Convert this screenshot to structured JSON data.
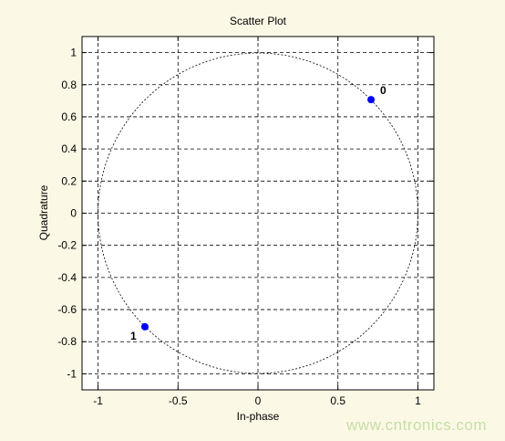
{
  "chart_data": {
    "type": "scatter",
    "title": "Scatter Plot",
    "xlabel": "In-phase",
    "ylabel": "Quadrature",
    "xlim": [
      -1.1,
      1.1
    ],
    "ylim": [
      -1.1,
      1.1
    ],
    "grid": true,
    "x_ticks": [
      -1,
      -0.5,
      0,
      0.5,
      1
    ],
    "x_tick_labels": [
      "-1",
      "-0.5",
      "0",
      "0.5",
      "1"
    ],
    "y_ticks": [
      1,
      0.8,
      0.6,
      0.4,
      0.2,
      0,
      -0.2,
      -0.4,
      -0.6,
      -0.8,
      -1
    ],
    "y_tick_labels": [
      "1",
      "0.8",
      "0.6",
      "0.4",
      "0.2",
      "0",
      "-0.2",
      "-0.4",
      "-0.6",
      "-0.8",
      "-1"
    ],
    "reference_circle": {
      "center": [
        0,
        0
      ],
      "radius": 1
    },
    "points": [
      {
        "x": 0.707,
        "y": 0.707,
        "label": "0"
      },
      {
        "x": -0.707,
        "y": -0.707,
        "label": "1"
      }
    ],
    "colors": {
      "point": "#0000ff",
      "grid": "#000000",
      "background": "#ffffff"
    }
  },
  "watermark": "www.cntronics.com"
}
